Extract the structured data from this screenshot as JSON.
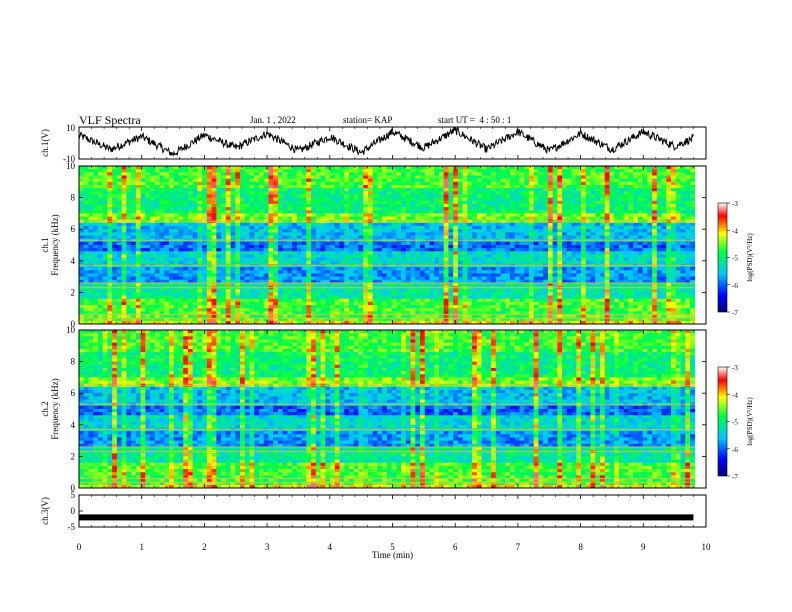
{
  "header": {
    "title": "VLF Spectra",
    "date": "Jan. 1 , 2022",
    "station": "station= KAP",
    "start_ut": "start UT =  4 : 50 : 1"
  },
  "chart_data": [
    {
      "type": "line",
      "ylabel": "ch.1(V)",
      "ylim": [
        -10,
        10
      ],
      "yticks": [
        "10",
        "-10"
      ],
      "xlim": [
        0,
        10
      ],
      "description_free_values": "oscillating waveform",
      "x": [
        0.0,
        0.5,
        1.0,
        1.5,
        2.0,
        2.5,
        3.0,
        3.5,
        4.0,
        4.5,
        5.0,
        5.5,
        6.0,
        6.5,
        7.0,
        7.5,
        8.0,
        8.5,
        9.0,
        9.5,
        9.8
      ],
      "values": [
        5,
        -4,
        4,
        -7,
        5,
        -3,
        6,
        -5,
        4,
        -6,
        7,
        -3,
        8,
        -4,
        7,
        -5,
        6,
        -4,
        7,
        -2,
        3
      ]
    },
    {
      "type": "heatmap",
      "ylabel": "ch.1\nFrequency (kHz)",
      "ylim": [
        0,
        10
      ],
      "yticks": [
        "0",
        "2",
        "4",
        "6",
        "8",
        "10"
      ],
      "xlim": [
        0,
        10
      ],
      "colorbar": {
        "label": "log(PSD)(V²/Hz)",
        "range": [
          -7,
          -3
        ],
        "ticks": [
          "-3",
          "-4",
          "-5",
          "-6",
          "-7"
        ]
      }
    },
    {
      "type": "heatmap",
      "ylabel": "ch.2\nFrequency (kHz)",
      "ylim": [
        0,
        10
      ],
      "yticks": [
        "0",
        "2",
        "4",
        "6",
        "8",
        "10"
      ],
      "xlim": [
        0,
        10
      ],
      "colorbar": {
        "label": "log(PSD)(V²/Hz)",
        "range": [
          -7,
          -3
        ],
        "ticks": [
          "-3",
          "-4",
          "-5",
          "-6",
          "-7"
        ]
      }
    },
    {
      "type": "line",
      "ylabel": "ch.3(V)",
      "ylim": [
        -5,
        5
      ],
      "yticks": [
        "5",
        "0",
        "-5"
      ],
      "xlim": [
        0,
        10
      ],
      "xlabel": "Time (min)",
      "xticks": [
        "0",
        "1",
        "2",
        "3",
        "4",
        "5",
        "6",
        "7",
        "8",
        "9",
        "10"
      ],
      "x": [
        0,
        9.8
      ],
      "values": [
        -2,
        -2
      ]
    }
  ]
}
